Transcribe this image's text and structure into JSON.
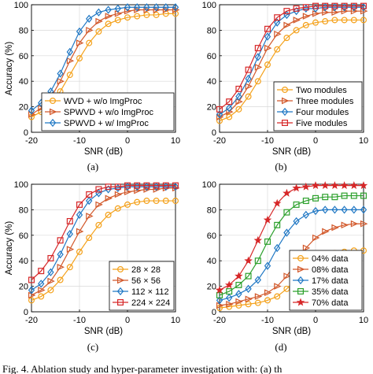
{
  "footer_text": "Fig. 4.   Ablation study and hyper-parameter investigation with: (a) th",
  "chart_data": [
    {
      "type": "line",
      "caption": "(a)",
      "xlabel": "SNR (dB)",
      "ylabel": "Accuracy (%)",
      "xlim": [
        -20,
        10
      ],
      "ylim": [
        0,
        100
      ],
      "xticks": [
        -20,
        -10,
        0,
        10
      ],
      "yticks": [
        0,
        20,
        40,
        60,
        80,
        100
      ],
      "grid": true,
      "legend_position": "bottom-right",
      "x": [
        -20,
        -18,
        -16,
        -14,
        -12,
        -10,
        -8,
        -6,
        -4,
        -2,
        0,
        2,
        4,
        6,
        8,
        10
      ],
      "series": [
        {
          "name": "WVD + w/o ImgProc",
          "color": "#f4a11a",
          "marker": "circle",
          "values": [
            12,
            16,
            22,
            32,
            45,
            58,
            70,
            79,
            85,
            88,
            90,
            91,
            92,
            92,
            93,
            93
          ]
        },
        {
          "name": "SPWVD + w/o ImgProc",
          "color": "#d2582a",
          "marker": "triangle-right",
          "values": [
            14,
            19,
            27,
            40,
            56,
            70,
            80,
            87,
            91,
            93,
            95,
            96,
            96,
            96,
            96,
            96
          ]
        },
        {
          "name": "SPWVD + w/ ImgProc",
          "color": "#1f77c4",
          "marker": "diamond",
          "values": [
            17,
            23,
            32,
            46,
            63,
            79,
            89,
            94,
            96,
            97,
            98,
            98,
            98,
            98,
            98,
            98
          ]
        }
      ]
    },
    {
      "type": "line",
      "caption": "(b)",
      "xlabel": "SNR (dB)",
      "ylabel": "",
      "xlim": [
        -20,
        10
      ],
      "ylim": [
        0,
        100
      ],
      "xticks": [
        -20,
        -10,
        0,
        10
      ],
      "yticks": [
        0,
        20,
        40,
        60,
        80,
        100
      ],
      "grid": true,
      "legend_position": "bottom-right",
      "x": [
        -20,
        -18,
        -16,
        -14,
        -12,
        -10,
        -8,
        -6,
        -4,
        -2,
        0,
        2,
        4,
        6,
        8,
        10
      ],
      "series": [
        {
          "name": "Two modules",
          "color": "#f4a11a",
          "marker": "circle",
          "values": [
            9,
            12,
            18,
            28,
            40,
            53,
            65,
            74,
            80,
            84,
            86,
            87,
            88,
            88,
            88,
            88
          ]
        },
        {
          "name": "Three modules",
          "color": "#d2582a",
          "marker": "triangle-right",
          "values": [
            12,
            16,
            24,
            36,
            51,
            66,
            77,
            84,
            88,
            91,
            93,
            94,
            94,
            95,
            95,
            95
          ]
        },
        {
          "name": "Four modules",
          "color": "#1f77c4",
          "marker": "diamond",
          "values": [
            14,
            19,
            28,
            42,
            59,
            75,
            86,
            92,
            95,
            97,
            97,
            98,
            98,
            98,
            98,
            98
          ]
        },
        {
          "name": "Five modules",
          "color": "#d62728",
          "marker": "square",
          "values": [
            18,
            24,
            34,
            49,
            66,
            81,
            90,
            95,
            97,
            98,
            99,
            99,
            99,
            99,
            99,
            99
          ]
        }
      ]
    },
    {
      "type": "line",
      "caption": "(c)",
      "xlabel": "SNR (dB)",
      "ylabel": "Accuracy (%)",
      "xlim": [
        -20,
        10
      ],
      "ylim": [
        0,
        100
      ],
      "xticks": [
        -20,
        -10,
        0,
        10
      ],
      "yticks": [
        0,
        20,
        40,
        60,
        80,
        100
      ],
      "grid": true,
      "legend_position": "bottom-right",
      "x": [
        -20,
        -18,
        -16,
        -14,
        -12,
        -10,
        -8,
        -6,
        -4,
        -2,
        0,
        2,
        4,
        6,
        8,
        10
      ],
      "series": [
        {
          "name": "28 × 28",
          "color": "#f4a11a",
          "marker": "circle",
          "values": [
            9,
            12,
            17,
            25,
            35,
            47,
            58,
            68,
            76,
            81,
            84,
            86,
            87,
            87,
            87,
            87
          ]
        },
        {
          "name": "56 × 56",
          "color": "#d2582a",
          "marker": "triangle-right",
          "values": [
            13,
            17,
            24,
            35,
            49,
            63,
            75,
            84,
            89,
            92,
            94,
            95,
            96,
            96,
            97,
            97
          ]
        },
        {
          "name": "112 × 112",
          "color": "#1f77c4",
          "marker": "diamond",
          "values": [
            17,
            22,
            31,
            45,
            61,
            76,
            87,
            93,
            96,
            97,
            98,
            98,
            98,
            98,
            98,
            98
          ]
        },
        {
          "name": "224 × 224",
          "color": "#d62728",
          "marker": "square",
          "values": [
            25,
            32,
            42,
            56,
            71,
            84,
            92,
            96,
            98,
            98,
            99,
            99,
            99,
            99,
            99,
            99
          ]
        }
      ]
    },
    {
      "type": "line",
      "caption": "(d)",
      "xlabel": "SNR (dB)",
      "ylabel": "",
      "xlim": [
        -20,
        10
      ],
      "ylim": [
        0,
        100
      ],
      "xticks": [
        -20,
        -10,
        0,
        10
      ],
      "yticks": [
        0,
        20,
        40,
        60,
        80,
        100
      ],
      "grid": true,
      "legend_position": "bottom-right",
      "x": [
        -20,
        -18,
        -16,
        -14,
        -12,
        -10,
        -8,
        -6,
        -4,
        -2,
        0,
        2,
        4,
        6,
        8,
        10
      ],
      "series": [
        {
          "name": "04% data",
          "color": "#f4a11a",
          "marker": "circle",
          "values": [
            3,
            4,
            5,
            6,
            7,
            9,
            12,
            18,
            26,
            34,
            40,
            44,
            46,
            47,
            48,
            48
          ]
        },
        {
          "name": "08% data",
          "color": "#d2582a",
          "marker": "triangle-right",
          "values": [
            5,
            6,
            8,
            10,
            12,
            15,
            20,
            28,
            39,
            50,
            58,
            63,
            66,
            68,
            69,
            69
          ]
        },
        {
          "name": "17% data",
          "color": "#1f77c4",
          "marker": "diamond",
          "values": [
            9,
            11,
            14,
            18,
            25,
            36,
            50,
            62,
            71,
            76,
            79,
            80,
            80,
            80,
            80,
            80
          ]
        },
        {
          "name": "35% data",
          "color": "#2ca02c",
          "marker": "square",
          "values": [
            13,
            16,
            21,
            28,
            40,
            55,
            68,
            78,
            84,
            87,
            89,
            90,
            90,
            91,
            91,
            91
          ]
        },
        {
          "name": "70% data",
          "color": "#d62728",
          "marker": "star",
          "values": [
            17,
            21,
            28,
            40,
            56,
            72,
            85,
            93,
            97,
            98,
            99,
            99,
            99,
            99,
            99,
            99
          ]
        }
      ]
    }
  ]
}
